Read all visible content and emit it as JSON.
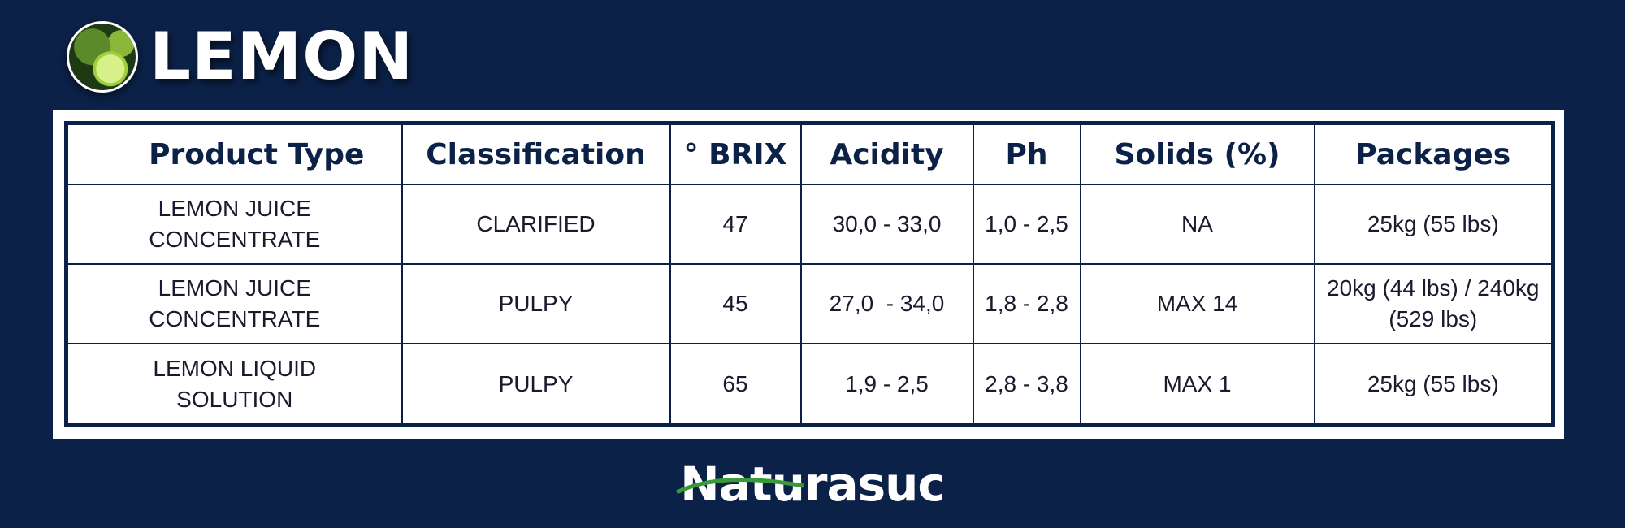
{
  "header": {
    "title": "LEMON",
    "logo_icon": "lemon-icon"
  },
  "table": {
    "columns": [
      "Product Type",
      "Classification",
      "° BRIX",
      "Acidity",
      "Ph",
      "Solids (%)",
      "Packages"
    ],
    "rows": [
      [
        "LEMON JUICE CONCENTRATE",
        "CLARIFIED",
        "47",
        "30,0 - 33,0",
        "1,0 - 2,5",
        "NA",
        "25kg (55 lbs)"
      ],
      [
        "LEMON JUICE CONCENTRATE",
        "PULPY",
        "45",
        "27,0  - 34,0",
        "1,8 - 2,8",
        "MAX 14",
        "20kg (44 lbs) / 240kg (529 lbs)"
      ],
      [
        "LEMON LIQUID SOLUTION",
        "PULPY",
        "65",
        "1,9 - 2,5",
        "2,8 - 3,8",
        "MAX 1",
        "25kg (55 lbs)"
      ]
    ]
  },
  "footer": {
    "brand": "Naturasuc"
  },
  "colors": {
    "background": "#0b2147",
    "table_border": "#0b2147",
    "swoosh": "#3a9a3a"
  }
}
